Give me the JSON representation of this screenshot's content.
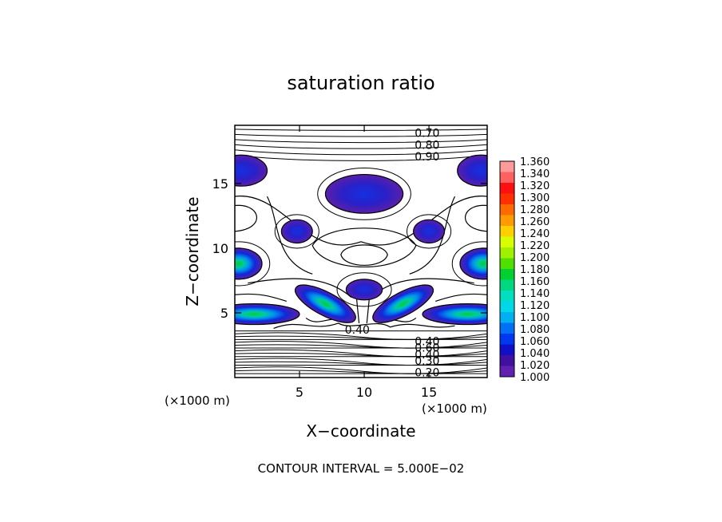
{
  "chart_data": {
    "type": "contour",
    "title": "saturation ratio",
    "xlabel": "X−coordinate",
    "ylabel": "Z−coordinate",
    "x_unit_left": "(×1000 m)",
    "x_unit_right": "(×1000 m)",
    "xlim": [
      0,
      19.5
    ],
    "ylim": [
      0,
      19.5
    ],
    "x_ticks": [
      5,
      10,
      15
    ],
    "y_ticks": [
      5,
      10,
      15
    ],
    "footer": "CONTOUR INTERVAL = 5.000E−02",
    "contour_labels": [
      {
        "text": "0.70",
        "x": 13.9,
        "z": 18.9
      },
      {
        "text": "0.80",
        "x": 13.9,
        "z": 18.0
      },
      {
        "text": "0.90",
        "x": 13.9,
        "z": 17.1
      },
      {
        "text": "0.40",
        "x": 8.5,
        "z": 3.7
      },
      {
        "text": "0.40",
        "x": 13.9,
        "z": 2.8
      },
      {
        "text": "0.60",
        "x": 13.9,
        "z": 2.3
      },
      {
        "text": "0.40",
        "x": 13.9,
        "z": 1.8
      },
      {
        "text": "0.30",
        "x": 13.9,
        "z": 1.3
      },
      {
        "text": "0.20",
        "x": 13.9,
        "z": 0.4
      }
    ],
    "colorbar": {
      "levels": [
        "1.360",
        "1.340",
        "1.320",
        "1.300",
        "1.280",
        "1.260",
        "1.240",
        "1.220",
        "1.200",
        "1.180",
        "1.160",
        "1.140",
        "1.120",
        "1.100",
        "1.080",
        "1.060",
        "1.040",
        "1.020",
        "1.000"
      ],
      "colors": [
        "#ff9a9a",
        "#ff6060",
        "#ff1010",
        "#ff3000",
        "#ff6a00",
        "#ff9a00",
        "#ffd000",
        "#d8ff00",
        "#a0f000",
        "#50e000",
        "#00d030",
        "#00d880",
        "#00e0c0",
        "#00d8e8",
        "#00b0f0",
        "#0070f8",
        "#0038f0",
        "#1010c8",
        "#4010a0",
        "#6020b0"
      ]
    },
    "regions": [
      {
        "name": "top-left-moist-patch",
        "x": 0.5,
        "z": 16.0,
        "rx": 2.0,
        "rz": 1.2,
        "peak": 1.04
      },
      {
        "name": "top-right-moist-patch",
        "x": 19.0,
        "z": 16.0,
        "rx": 1.8,
        "rz": 1.2,
        "peak": 1.04
      },
      {
        "name": "top-center-moist-patch",
        "x": 10.0,
        "z": 14.2,
        "rx": 3.0,
        "rz": 1.5,
        "peak": 1.05
      },
      {
        "name": "mid-left-moist-patch",
        "x": 4.8,
        "z": 11.3,
        "rx": 1.2,
        "rz": 0.9,
        "peak": 1.03
      },
      {
        "name": "mid-right-moist-patch",
        "x": 15.0,
        "z": 11.3,
        "rx": 1.2,
        "rz": 0.9,
        "peak": 1.03
      },
      {
        "name": "left-edge-moist-patch",
        "x": 0.3,
        "z": 8.8,
        "rx": 1.8,
        "rz": 1.2,
        "peak": 1.09
      },
      {
        "name": "right-edge-moist-patch",
        "x": 19.2,
        "z": 8.8,
        "rx": 1.8,
        "rz": 1.2,
        "peak": 1.09
      },
      {
        "name": "center-small-moist-patch",
        "x": 10.0,
        "z": 6.8,
        "rx": 1.4,
        "rz": 0.8,
        "peak": 1.04
      },
      {
        "name": "left-wing-moist-patch",
        "x": 7.0,
        "z": 5.7,
        "rx": 2.6,
        "rz": 0.9,
        "rot": 28,
        "peak": 1.15
      },
      {
        "name": "right-wing-moist-patch",
        "x": 13.0,
        "z": 5.7,
        "rx": 2.6,
        "rz": 0.9,
        "rot": -28,
        "peak": 1.15
      },
      {
        "name": "left-low-moist-band",
        "x": 1.5,
        "z": 4.9,
        "rx": 3.5,
        "rz": 0.8,
        "peak": 1.22
      },
      {
        "name": "right-low-moist-band",
        "x": 18.0,
        "z": 4.9,
        "rx": 3.5,
        "rz": 0.8,
        "peak": 1.22
      }
    ]
  }
}
